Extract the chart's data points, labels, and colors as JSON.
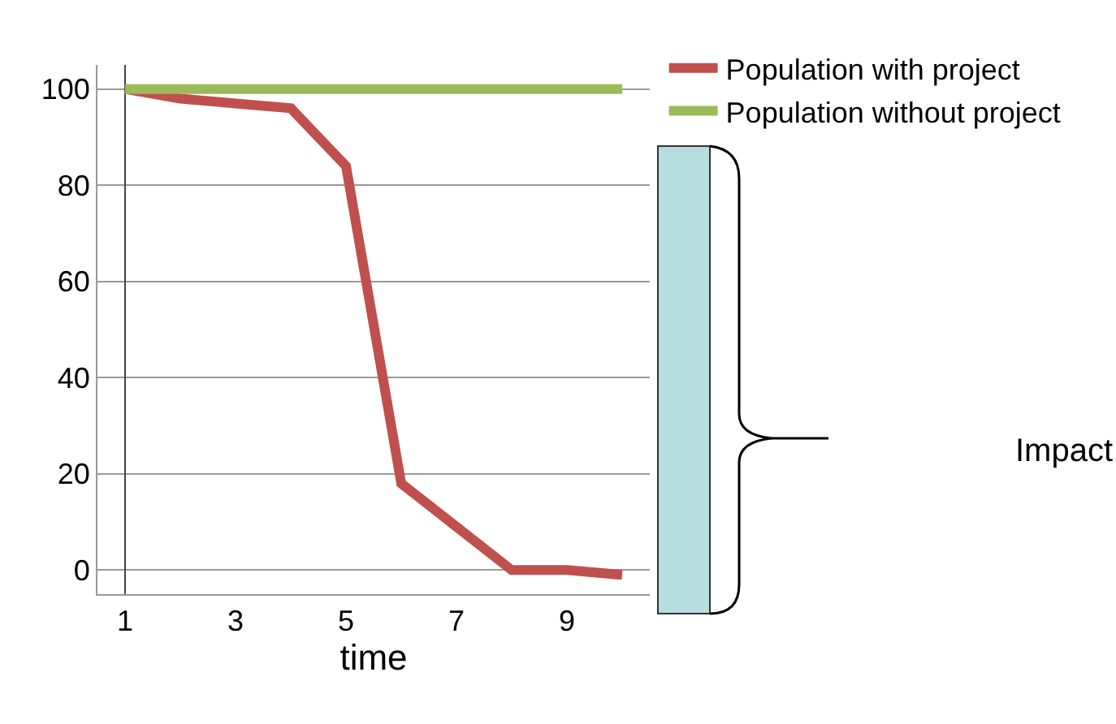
{
  "chart_data": {
    "type": "line",
    "xlabel": "time",
    "categories": [
      "1",
      null,
      "3",
      null,
      "5",
      null,
      "7",
      null,
      "9",
      null
    ],
    "series": [
      {
        "name": "Population with project",
        "color": "#c0504d",
        "values": [
          100,
          98,
          97,
          96,
          84,
          18,
          9,
          0,
          0,
          -1
        ]
      },
      {
        "name": "Population without project",
        "color": "#9bbb59",
        "values": [
          100,
          100,
          100,
          100,
          100,
          100,
          100,
          100,
          100,
          100
        ]
      }
    ],
    "ylim": [
      -5,
      105
    ],
    "yticks": [
      0,
      20,
      40,
      60,
      80,
      100
    ],
    "grid": "y",
    "legend": "top right",
    "marker": "none",
    "line_style": "solid",
    "annotations": [
      "Impact"
    ]
  }
}
